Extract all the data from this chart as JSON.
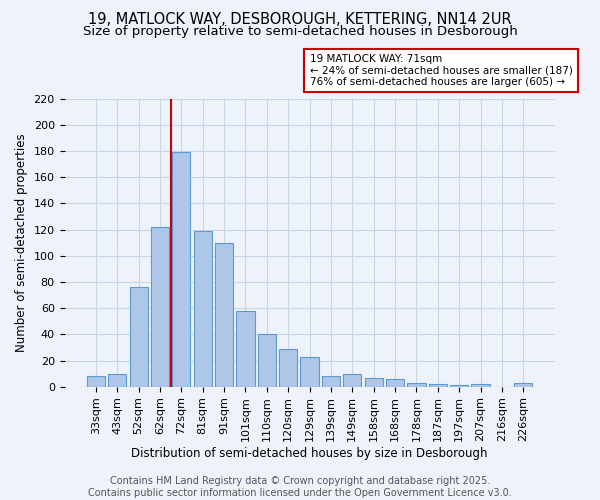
{
  "title1": "19, MATLOCK WAY, DESBOROUGH, KETTERING, NN14 2UR",
  "title2": "Size of property relative to semi-detached houses in Desborough",
  "xlabel": "Distribution of semi-detached houses by size in Desborough",
  "ylabel": "Number of semi-detached properties",
  "categories": [
    "33sqm",
    "43sqm",
    "52sqm",
    "62sqm",
    "72sqm",
    "81sqm",
    "91sqm",
    "101sqm",
    "110sqm",
    "120sqm",
    "129sqm",
    "139sqm",
    "149sqm",
    "158sqm",
    "168sqm",
    "178sqm",
    "187sqm",
    "197sqm",
    "207sqm",
    "216sqm",
    "226sqm"
  ],
  "values": [
    8,
    10,
    76,
    122,
    179,
    119,
    110,
    58,
    40,
    29,
    23,
    8,
    10,
    7,
    6,
    3,
    2,
    1,
    2,
    0,
    3
  ],
  "bar_color": "#aec6e8",
  "bar_edge_color": "#5b9bd5",
  "grid_color": "#c8d4e8",
  "background_color": "#eef2fa",
  "vline_color": "#cc0000",
  "vline_xindex": 4,
  "annotation_text": "19 MATLOCK WAY: 71sqm\n← 24% of semi-detached houses are smaller (187)\n76% of semi-detached houses are larger (605) →",
  "annotation_box_color": "#ffffff",
  "annotation_box_edge": "#cc0000",
  "footer_text": "Contains HM Land Registry data © Crown copyright and database right 2025.\nContains public sector information licensed under the Open Government Licence v3.0.",
  "ylim": [
    0,
    220
  ],
  "yticks": [
    0,
    20,
    40,
    60,
    80,
    100,
    120,
    140,
    160,
    180,
    200,
    220
  ],
  "title_fontsize": 10.5,
  "subtitle_fontsize": 9.5,
  "tick_fontsize": 8,
  "axis_label_fontsize": 8.5,
  "footer_fontsize": 7,
  "annotation_fontsize": 7.5
}
